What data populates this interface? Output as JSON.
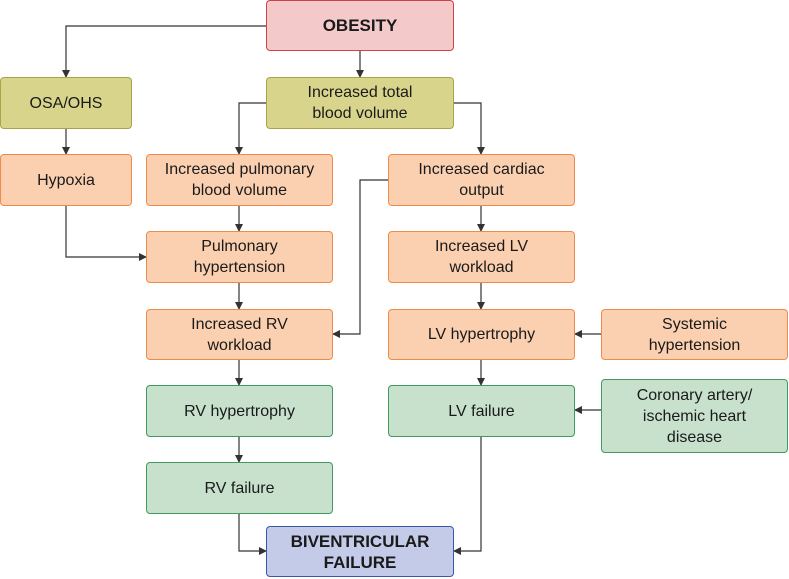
{
  "nodes": {
    "obesity": "OBESITY",
    "osa_ohs": "OSA/OHS",
    "increased_total_blood_volume": "Increased total\nblood volume",
    "hypoxia": "Hypoxia",
    "increased_pulmonary_blood_volume": "Increased pulmonary\nblood volume",
    "increased_cardiac_output": "Increased cardiac\noutput",
    "pulmonary_hypertension": "Pulmonary\nhypertension",
    "increased_lv_workload": "Increased LV\nworkload",
    "increased_rv_workload": "Increased RV\nworkload",
    "lv_hypertrophy": "LV hypertrophy",
    "systemic_hypertension": "Systemic\nhypertension",
    "rv_hypertrophy": "RV hypertrophy",
    "lv_failure": "LV failure",
    "coronary_artery_disease": "Coronary artery/\nischemic heart\ndisease",
    "rv_failure": "RV failure",
    "biventricular_failure": "BIVENTRICULAR\nFAILURE"
  },
  "colors": {
    "root": "#f3c9c9",
    "mechanism": "#d8d48b",
    "intermediate": "#fbd0b0",
    "failure": "#c7e1cd",
    "outcome": "#c4cbe8",
    "connector": "#333333"
  }
}
